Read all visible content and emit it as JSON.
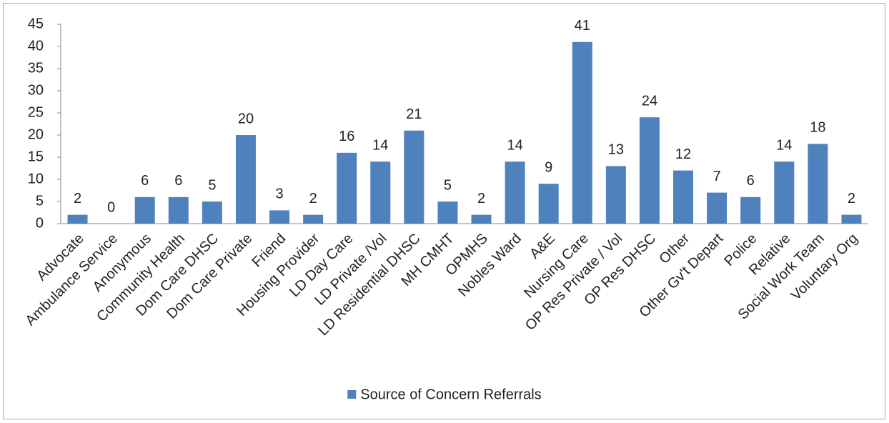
{
  "chart_data": {
    "type": "bar",
    "categories": [
      "Advocate",
      "Ambulance Service",
      "Anonymous",
      "Community Health",
      "Dom Care DHSC",
      "Dom Care Private",
      "Friend",
      "Housing Provider",
      "LD Day Care",
      "LD Private /Vol",
      "LD Residential DHSC",
      "MH CMHT",
      "OPMHS",
      "Nobles Ward",
      "A&E",
      "Nursing Care",
      "OP Res Private / Vol",
      "OP Res DHSC",
      "Other",
      "Other Gv't Depart",
      "Police",
      "Relative",
      "Social Work Team",
      "Voluntary Org"
    ],
    "series": [
      {
        "name": "Source of Concern Referrals",
        "color": "#4f81bd",
        "values": [
          2,
          0,
          6,
          6,
          5,
          20,
          3,
          2,
          16,
          14,
          21,
          5,
          2,
          14,
          9,
          41,
          13,
          24,
          12,
          7,
          6,
          14,
          18,
          2
        ]
      }
    ],
    "ylim": [
      0,
      45
    ],
    "yticks": [
      0,
      5,
      10,
      15,
      20,
      25,
      30,
      35,
      40,
      45
    ],
    "grid": false,
    "legend": "bottom"
  }
}
